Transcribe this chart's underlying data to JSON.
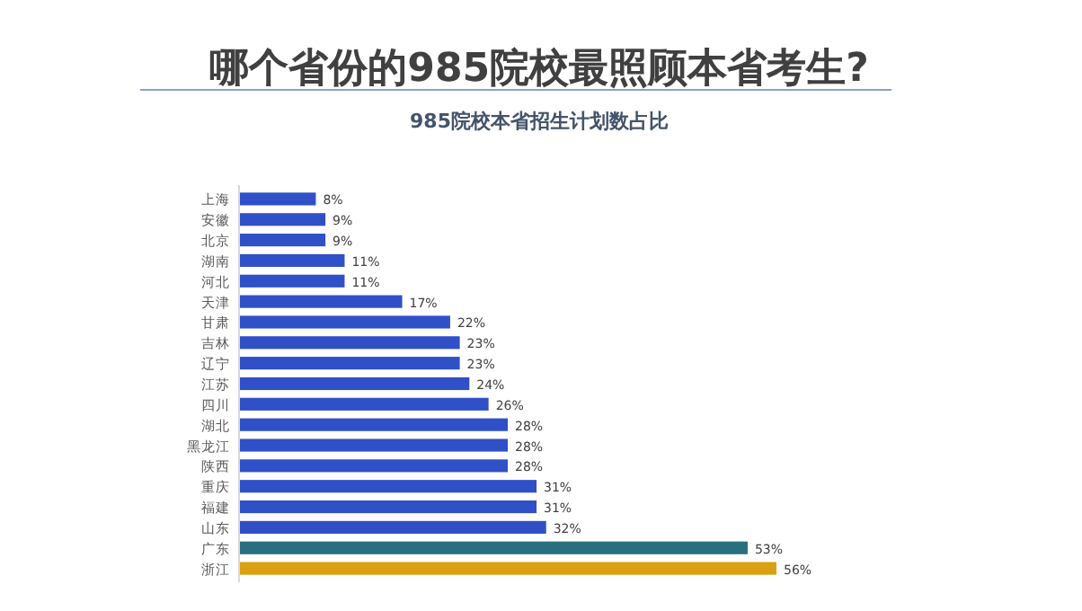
{
  "chart_data": {
    "type": "bar",
    "orientation": "horizontal",
    "title": "哪个省份的985院校最照顾本省考生?",
    "subtitle": "985院校本省招生计划数占比",
    "categories": [
      "上海",
      "安徽",
      "北京",
      "湖南",
      "河北",
      "天津",
      "甘肃",
      "吉林",
      "辽宁",
      "江苏",
      "四川",
      "湖北",
      "黑龙江",
      "陕西",
      "重庆",
      "福建",
      "山东",
      "广东",
      "浙江"
    ],
    "values": [
      8,
      9,
      9,
      11,
      11,
      17,
      22,
      23,
      23,
      24,
      26,
      28,
      28,
      28,
      31,
      31,
      32,
      53,
      56
    ],
    "value_labels": [
      "8%",
      "9%",
      "9%",
      "11%",
      "11%",
      "17%",
      "22%",
      "23%",
      "23%",
      "24%",
      "26%",
      "28%",
      "28%",
      "28%",
      "31%",
      "31%",
      "32%",
      "53%",
      "56%"
    ],
    "colors": [
      "#3050c8",
      "#3050c8",
      "#3050c8",
      "#3050c8",
      "#3050c8",
      "#3050c8",
      "#3050c8",
      "#3050c8",
      "#3050c8",
      "#3050c8",
      "#3050c8",
      "#3050c8",
      "#3050c8",
      "#3050c8",
      "#3050c8",
      "#3050c8",
      "#3050c8",
      "#2a6f80",
      "#d9a010"
    ]
  }
}
